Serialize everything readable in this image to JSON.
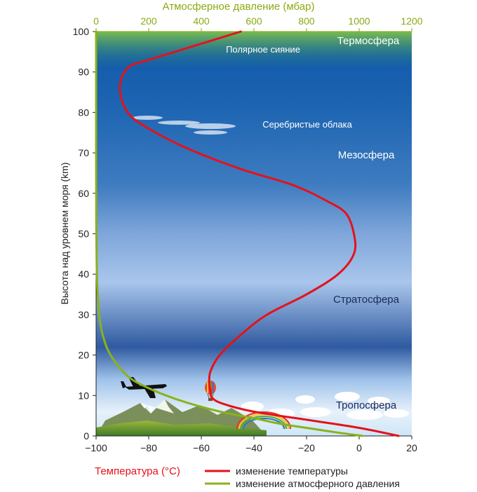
{
  "chart_data": {
    "type": "line",
    "title": "",
    "ylabel": "Высота над уровнем моря (km)",
    "xlabel": "Температура (°C)",
    "x2label": "Атмосферное давление (мбар)",
    "ylim": [
      0,
      100
    ],
    "xlim": [
      -100,
      20
    ],
    "x2lim": [
      0,
      1200
    ],
    "y_ticks": [
      "0",
      "10",
      "20",
      "30",
      "40",
      "50",
      "60",
      "70",
      "80",
      "90",
      "100"
    ],
    "x_ticks": [
      "−100",
      "−80",
      "−60",
      "−40",
      "−20",
      "0",
      "20"
    ],
    "x2_ticks": [
      "0",
      "200",
      "400",
      "600",
      "800",
      "1000",
      "1200"
    ],
    "series": [
      {
        "name": "изменение температуры",
        "color": "#e4121b",
        "axis": "temperature",
        "x": [
          15,
          0,
          -20,
          -40,
          -52,
          -56,
          -56.5,
          -57,
          -56.5,
          -53,
          -45,
          -35,
          -20,
          -8,
          -2,
          -2,
          -5,
          -12,
          -25,
          -45,
          -65,
          -80,
          -88,
          -91,
          -88,
          -80,
          -70,
          -60,
          -50,
          -45
        ],
        "y": [
          0,
          2,
          4,
          6,
          8,
          9.5,
          11,
          13,
          16,
          20,
          25,
          30,
          35,
          40,
          45,
          50,
          55,
          58,
          62,
          66,
          71,
          76,
          80,
          86,
          91,
          93,
          95,
          97,
          99,
          100
        ]
      },
      {
        "name": "изменение атмосферного давления",
        "color": "#8ab21a",
        "axis": "pressure",
        "x": [
          1013,
          900,
          800,
          700,
          600,
          500,
          400,
          300,
          200,
          120,
          55,
          25,
          12,
          5,
          2,
          0.5,
          0.1,
          0
        ],
        "y": [
          0,
          1,
          2,
          3,
          4.4,
          5.6,
          7.2,
          9.2,
          11.8,
          14.8,
          20,
          25,
          30,
          36,
          43,
          53,
          70,
          100
        ]
      }
    ],
    "annotations": {
      "thermosphere": "Термосфера",
      "aurora": "Полярное сияние",
      "noctilucent": "Серебристые облака",
      "mesosphere": "Мезосфера",
      "stratosphere": "Стратосфера",
      "troposphere": "Тропосфера"
    },
    "colors": {
      "sky_top": "#0e55a8",
      "sky_mid": "#9fc0ea",
      "sky_bottom": "#eaf3fc",
      "aurora": "#4fae3a"
    }
  },
  "legend": {
    "temp": "изменение температуры",
    "pressure": "изменение атмосферного давления"
  }
}
